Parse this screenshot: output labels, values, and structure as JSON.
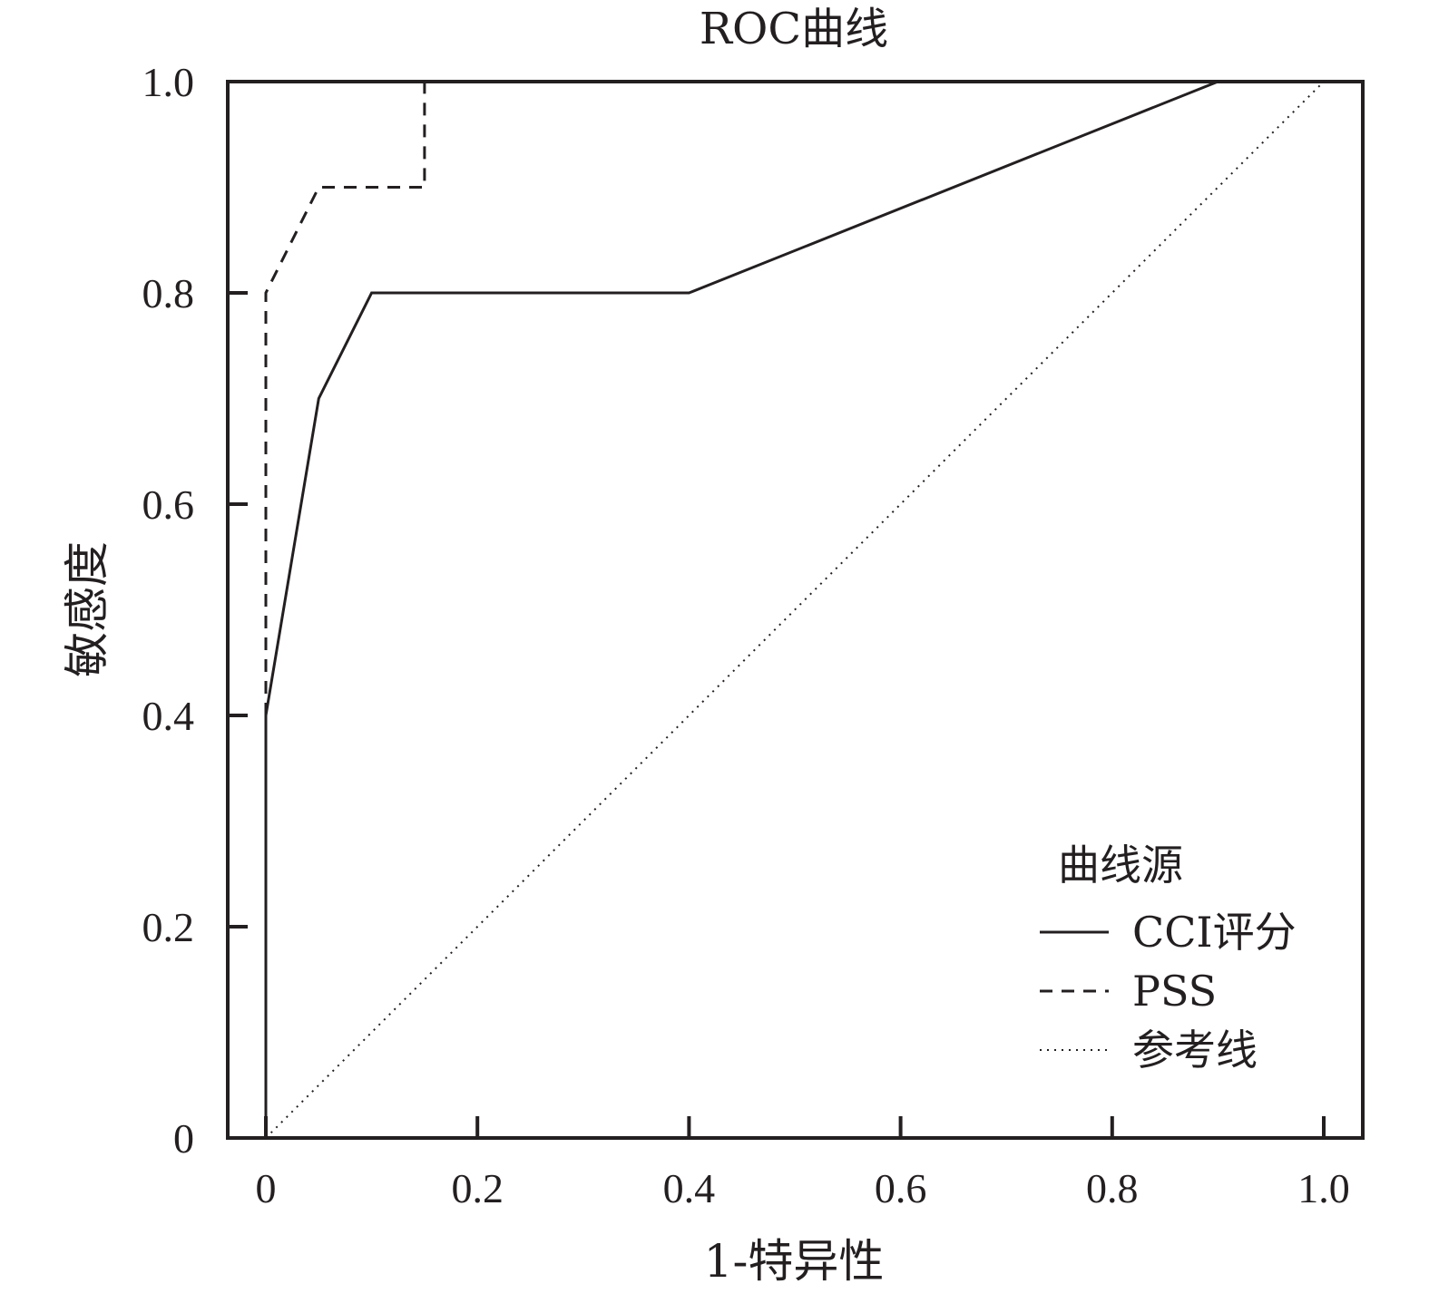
{
  "chart_data": {
    "type": "line",
    "title": "ROC曲线",
    "xlabel": "1-特异性",
    "ylabel": "敏感度",
    "xlim": [
      0,
      1.0
    ],
    "ylim": [
      0,
      1.0
    ],
    "x_ticks": [
      "0",
      "0.2",
      "0.4",
      "0.6",
      "0.8",
      "1.0"
    ],
    "y_ticks": [
      "0",
      "0.2",
      "0.4",
      "0.6",
      "0.8",
      "1.0"
    ],
    "grid": false,
    "legend": {
      "title": "曲线源",
      "position": "bottom-right"
    },
    "series": [
      {
        "name": "CCI评分",
        "style": "solid",
        "color": "#231f20",
        "points": [
          [
            0,
            0
          ],
          [
            0,
            0.4
          ],
          [
            0.05,
            0.7
          ],
          [
            0.1,
            0.8
          ],
          [
            0.4,
            0.8
          ],
          [
            0.9,
            1.0
          ]
        ]
      },
      {
        "name": "PSS",
        "style": "dashed",
        "color": "#231f20",
        "points": [
          [
            0,
            0.4
          ],
          [
            0,
            0.8
          ],
          [
            0.05,
            0.9
          ],
          [
            0.15,
            0.9
          ],
          [
            0.15,
            1.0
          ]
        ]
      },
      {
        "name": "参考线",
        "style": "dotted",
        "color": "#231f20",
        "points": [
          [
            0,
            0
          ],
          [
            1.0,
            1.0
          ]
        ]
      }
    ]
  }
}
